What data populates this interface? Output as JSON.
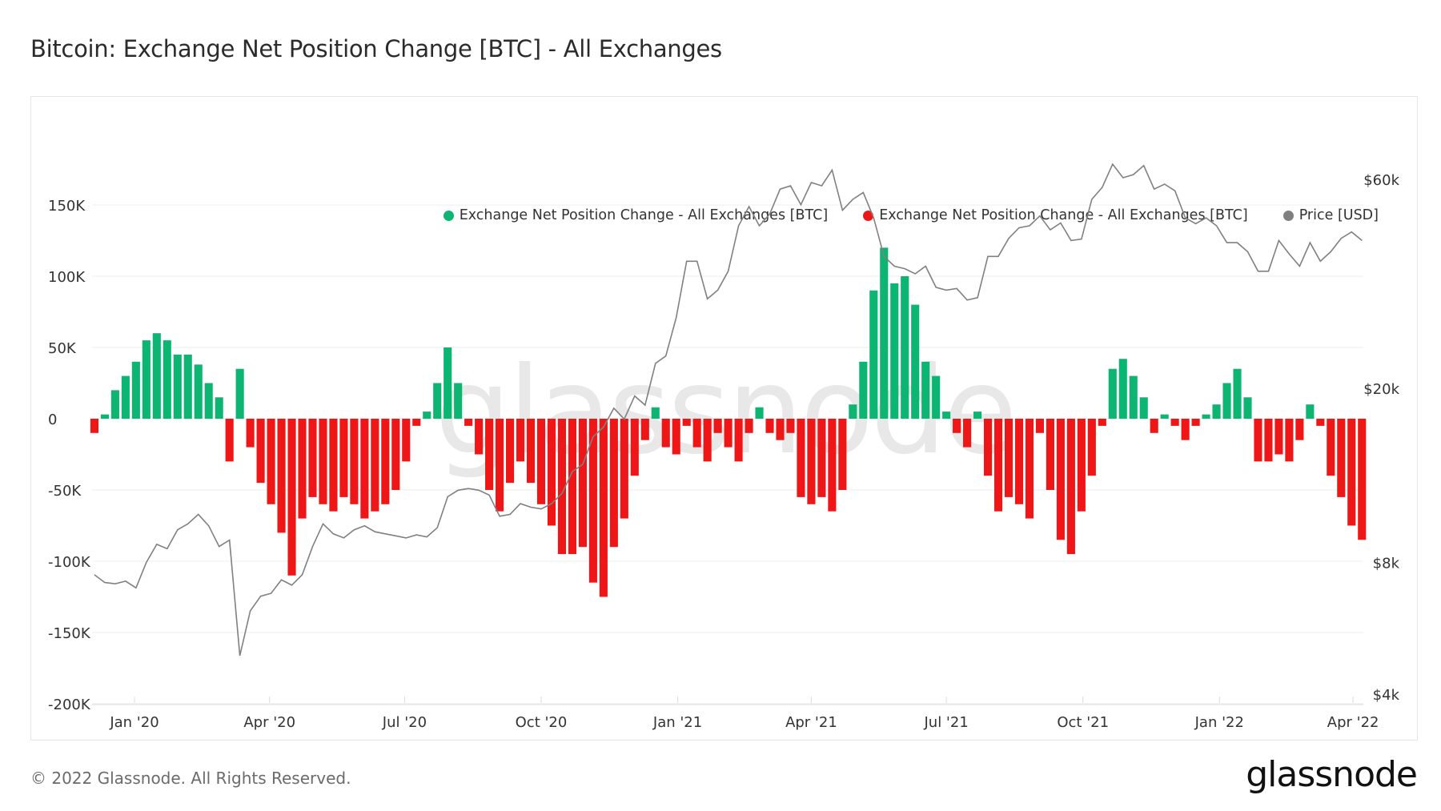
{
  "title": "Bitcoin: Exchange Net Position Change [BTC] - All Exchanges",
  "footer": {
    "copyright": "© 2022 Glassnode. All Rights Reserved.",
    "logo_text": "glassnode"
  },
  "watermark": "glassnode",
  "colors": {
    "positive": "#0cb572",
    "negative": "#ee1616",
    "price": "#808080",
    "grid": "#eeeeee"
  },
  "chart_data": {
    "type": "bar",
    "title": "Bitcoin: Exchange Net Position Change [BTC] - All Exchanges",
    "legend_position": "top-right",
    "grid": true,
    "legend": [
      {
        "label": "Exchange Net Position Change - All Exchanges [BTC]",
        "color": "#0cb572"
      },
      {
        "label": "Exchange Net Position Change - All Exchanges [BTC]",
        "color": "#ee1616"
      },
      {
        "label": "Price [USD]",
        "color": "#808080"
      }
    ],
    "x_start": "2019-12-05",
    "x_step_days": 7,
    "x_ticks": [
      {
        "date": "2020-01-01",
        "label": "Jan '20"
      },
      {
        "date": "2020-04-01",
        "label": "Apr '20"
      },
      {
        "date": "2020-07-01",
        "label": "Jul '20"
      },
      {
        "date": "2020-10-01",
        "label": "Oct '20"
      },
      {
        "date": "2021-01-01",
        "label": "Jan '21"
      },
      {
        "date": "2021-04-01",
        "label": "Apr '21"
      },
      {
        "date": "2021-07-01",
        "label": "Jul '21"
      },
      {
        "date": "2021-10-01",
        "label": "Oct '21"
      },
      {
        "date": "2022-01-01",
        "label": "Jan '22"
      },
      {
        "date": "2022-04-01",
        "label": "Apr '22"
      }
    ],
    "y_left": {
      "range": [
        -200000,
        200000
      ],
      "ticks": [
        {
          "v": 150000,
          "label": "150K"
        },
        {
          "v": 100000,
          "label": "100K"
        },
        {
          "v": 50000,
          "label": "50K"
        },
        {
          "v": 0,
          "label": "0"
        },
        {
          "v": -50000,
          "label": "-50K"
        },
        {
          "v": -100000,
          "label": "-100K"
        },
        {
          "v": -150000,
          "label": "-150K"
        },
        {
          "v": -200000,
          "label": "-200K"
        }
      ]
    },
    "y_right": {
      "scale": "log",
      "ticks": [
        {
          "v": 60000,
          "label": "$60k"
        },
        {
          "v": 20000,
          "label": "$20k"
        },
        {
          "v": 8000,
          "label": "$8k"
        },
        {
          "v": 4000,
          "label": "$4k"
        }
      ]
    },
    "series": [
      {
        "name": "Exchange Net Position Change - All Exchanges [BTC]",
        "unit": "BTC",
        "values": [
          -10000,
          3000,
          20000,
          30000,
          40000,
          55000,
          60000,
          55000,
          45000,
          45000,
          38000,
          25000,
          15000,
          -30000,
          35000,
          -20000,
          -45000,
          -60000,
          -80000,
          -110000,
          -70000,
          -55000,
          -60000,
          -65000,
          -55000,
          -60000,
          -70000,
          -65000,
          -60000,
          -50000,
          -30000,
          -5000,
          5000,
          25000,
          50000,
          25000,
          -5000,
          -25000,
          -50000,
          -65000,
          -45000,
          -30000,
          -45000,
          -60000,
          -75000,
          -95000,
          -95000,
          -90000,
          -115000,
          -125000,
          -90000,
          -70000,
          -40000,
          -15000,
          8000,
          -20000,
          -25000,
          -5000,
          -20000,
          -30000,
          -10000,
          -20000,
          -30000,
          -10000,
          8000,
          -10000,
          -15000,
          -10000,
          -55000,
          -60000,
          -55000,
          -65000,
          -50000,
          10000,
          40000,
          90000,
          120000,
          95000,
          100000,
          80000,
          40000,
          30000,
          5000,
          -10000,
          -20000,
          5000,
          -40000,
          -65000,
          -55000,
          -60000,
          -70000,
          -10000,
          -50000,
          -85000,
          -95000,
          -65000,
          -40000,
          -5000,
          35000,
          42000,
          30000,
          15000,
          -10000,
          3000,
          -5000,
          -15000,
          -5000,
          3000,
          10000,
          25000,
          35000,
          15000,
          -30000,
          -30000,
          -25000,
          -30000,
          -15000,
          10000,
          -5000,
          -40000,
          -55000,
          -75000,
          -85000
        ]
      },
      {
        "name": "Price [USD]",
        "unit": "USD",
        "values": [
          7500,
          7200,
          7150,
          7250,
          7000,
          8000,
          8800,
          8600,
          9500,
          9800,
          10300,
          9700,
          8700,
          9000,
          4900,
          6200,
          6700,
          6800,
          7300,
          7100,
          7500,
          8700,
          9800,
          9300,
          9100,
          9500,
          9700,
          9400,
          9300,
          9200,
          9100,
          9250,
          9150,
          9600,
          11300,
          11700,
          11800,
          11700,
          11400,
          10200,
          10300,
          10900,
          10700,
          10600,
          10900,
          11500,
          12900,
          13400,
          15500,
          16300,
          18000,
          17000,
          19200,
          18300,
          22800,
          23700,
          29000,
          39000,
          39000,
          32000,
          33500,
          37000,
          47000,
          52000,
          47000,
          50000,
          57000,
          58000,
          52500,
          59000,
          58000,
          63000,
          51000,
          54000,
          56000,
          49000,
          40000,
          38000,
          37500,
          36500,
          38000,
          34000,
          33500,
          33800,
          31800,
          32200,
          40000,
          40000,
          44000,
          46500,
          47000,
          49500,
          46000,
          47700,
          43500,
          43800,
          54000,
          57500,
          65000,
          60500,
          61500,
          64500,
          57000,
          58500,
          56500,
          49000,
          47500,
          49000,
          47000,
          43000,
          43000,
          41000,
          37000,
          37000,
          43500,
          40500,
          38000,
          43000,
          39000,
          41000,
          44000,
          45500,
          43500
        ]
      }
    ]
  }
}
